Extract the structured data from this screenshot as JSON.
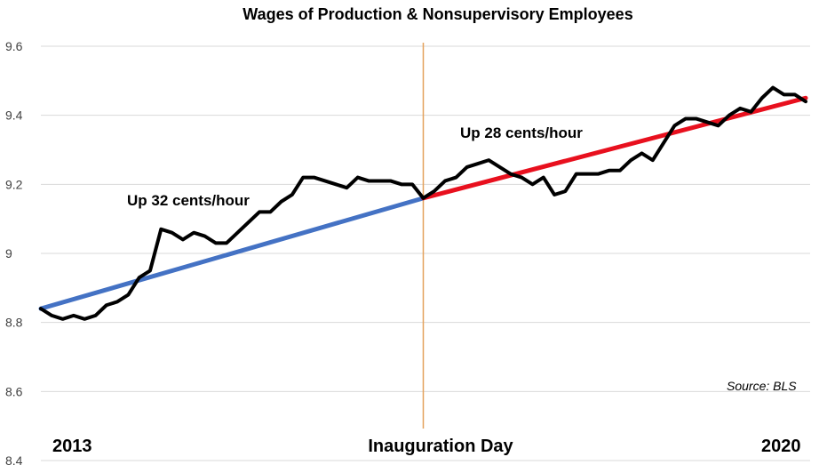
{
  "chart_data": {
    "type": "line",
    "title": "Wages of Production & Nonsupervisory Employees",
    "xlabel": "",
    "ylabel": "",
    "ylim": [
      8.4,
      9.6
    ],
    "yticks": [
      "9.6",
      "9.4",
      "9.2",
      "9",
      "8.8",
      "8.6",
      "8.4"
    ],
    "grid": true,
    "x_labels": {
      "start": "2013",
      "middle": "Inauguration Day",
      "end": "2020"
    },
    "series": [
      {
        "color": "#000000",
        "values": [
          8.84,
          8.82,
          8.81,
          8.82,
          8.81,
          8.82,
          8.85,
          8.86,
          8.88,
          8.93,
          8.95,
          9.07,
          9.06,
          9.04,
          9.06,
          9.05,
          9.03,
          9.03,
          9.06,
          9.09,
          9.12,
          9.12,
          9.15,
          9.17,
          9.22,
          9.22,
          9.21,
          9.2,
          9.19,
          9.22,
          9.21,
          9.21,
          9.21,
          9.2,
          9.2,
          9.16,
          9.18,
          9.21,
          9.22,
          9.25,
          9.26,
          9.27,
          9.25,
          9.23,
          9.22,
          9.2,
          9.22,
          9.17,
          9.18,
          9.23,
          9.23,
          9.23,
          9.24,
          9.24,
          9.27,
          9.29,
          9.27,
          9.32,
          9.37,
          9.39,
          9.39,
          9.38,
          9.37,
          9.4,
          9.42,
          9.41,
          9.45,
          9.48,
          9.46,
          9.46,
          9.44
        ]
      },
      {
        "color": "#4472C4",
        "x_range": [
          0,
          35
        ],
        "values": [
          8.84,
          9.16
        ]
      },
      {
        "color": "#E8101E",
        "x_range": [
          35,
          70
        ],
        "values": [
          9.16,
          9.45
        ]
      }
    ],
    "vertical_marker": {
      "x_index": 35,
      "color": "#E4A15B"
    },
    "annotations": [
      {
        "text": "Up 32 cents/hour"
      },
      {
        "text": "Up 28 cents/hour"
      }
    ],
    "source": "Source: BLS"
  }
}
